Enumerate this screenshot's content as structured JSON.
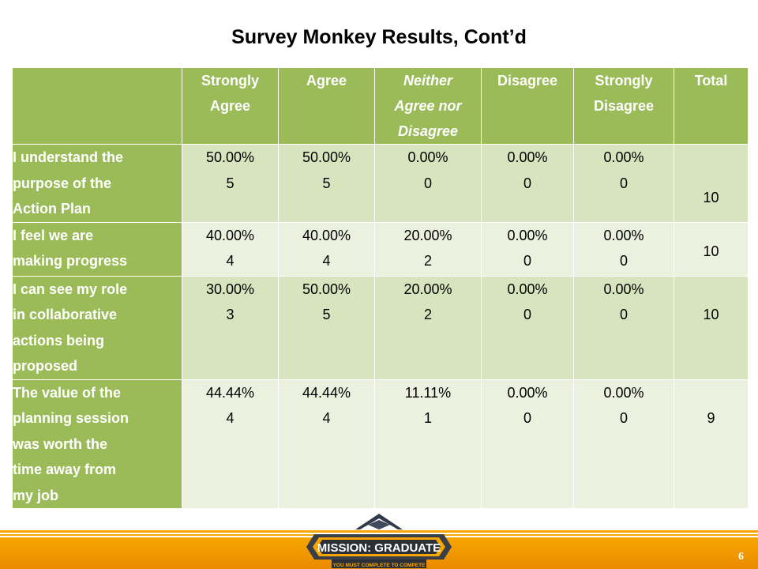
{
  "title": "Survey Monkey Results, Cont’d",
  "table": {
    "headers": [
      [
        "Strongly",
        "Agree"
      ],
      [
        "Agree"
      ],
      [
        "Neither",
        "Agree nor",
        "Disagree"
      ],
      [
        "Disagree"
      ],
      [
        "Strongly",
        "Disagree"
      ],
      [
        "Total"
      ]
    ],
    "rows": [
      {
        "question": [
          "I understand the",
          "purpose of the",
          "Action Plan"
        ],
        "cells": [
          [
            "50.00%",
            "5"
          ],
          [
            "50.00%",
            "5"
          ],
          [
            "0.00%",
            "0"
          ],
          [
            "0.00%",
            "0"
          ],
          [
            "0.00%",
            "0"
          ]
        ],
        "total": "10"
      },
      {
        "question": [
          "I feel we are",
          "making progress"
        ],
        "cells": [
          [
            "40.00%",
            "4"
          ],
          [
            "40.00%",
            "4"
          ],
          [
            "20.00%",
            "2"
          ],
          [
            "0.00%",
            "0"
          ],
          [
            "0.00%",
            "0"
          ]
        ],
        "total": "10"
      },
      {
        "question": [
          "I can see my role",
          "in collaborative",
          "actions being",
          "proposed"
        ],
        "cells": [
          [
            "30.00%",
            "3"
          ],
          [
            "50.00%",
            "5"
          ],
          [
            "20.00%",
            "2"
          ],
          [
            "0.00%",
            "0"
          ],
          [
            "0.00%",
            "0"
          ]
        ],
        "total": "10"
      },
      {
        "question": [
          "The value of the",
          "planning session",
          "was worth the",
          "time away from",
          "my job"
        ],
        "cells": [
          [
            "44.44%",
            "4"
          ],
          [
            "44.44%",
            "4"
          ],
          [
            "11.11%",
            "1"
          ],
          [
            "0.00%",
            "0"
          ],
          [
            "0.00%",
            "0"
          ]
        ],
        "total": "9"
      }
    ]
  },
  "footer": {
    "logo_text": "MISSION: GRADUATE",
    "logo_tagline": "YOU MUST COMPLETE TO COMPETE",
    "page_number": "6"
  },
  "colors": {
    "header_green": "#9bbb59",
    "row_odd": "#d7e4bd",
    "row_even": "#ebf1de",
    "band_orange": "#f7a600"
  }
}
